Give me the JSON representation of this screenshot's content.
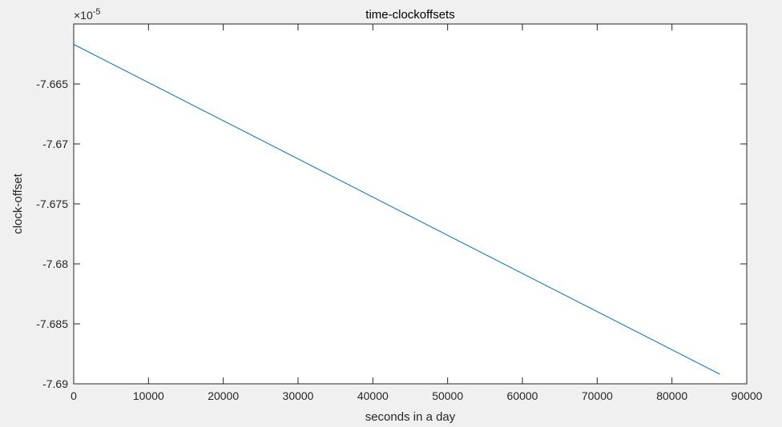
{
  "chart_data": {
    "type": "line",
    "title": "time-clockoffsets",
    "xlabel": "seconds in a day",
    "ylabel": "clock-offset",
    "y_exponent_label": "×10",
    "y_exponent": "-5",
    "xlim": [
      0,
      90000
    ],
    "ylim": [
      -7.69,
      -7.66
    ],
    "xticks": [
      0,
      10000,
      20000,
      30000,
      40000,
      50000,
      60000,
      70000,
      80000,
      90000
    ],
    "xtick_labels": [
      "0",
      "10000",
      "20000",
      "30000",
      "40000",
      "50000",
      "60000",
      "70000",
      "80000",
      "90000"
    ],
    "yticks": [
      -7.69,
      -7.685,
      -7.68,
      -7.675,
      -7.67,
      -7.665
    ],
    "ytick_labels": [
      "-7.69",
      "-7.685",
      "-7.68",
      "-7.675",
      "-7.67",
      "-7.665"
    ],
    "grid": false,
    "series": [
      {
        "color": "#0072bd",
        "x": [
          0,
          86400
        ],
        "y": [
          -7.6617,
          -7.6892
        ]
      }
    ]
  }
}
